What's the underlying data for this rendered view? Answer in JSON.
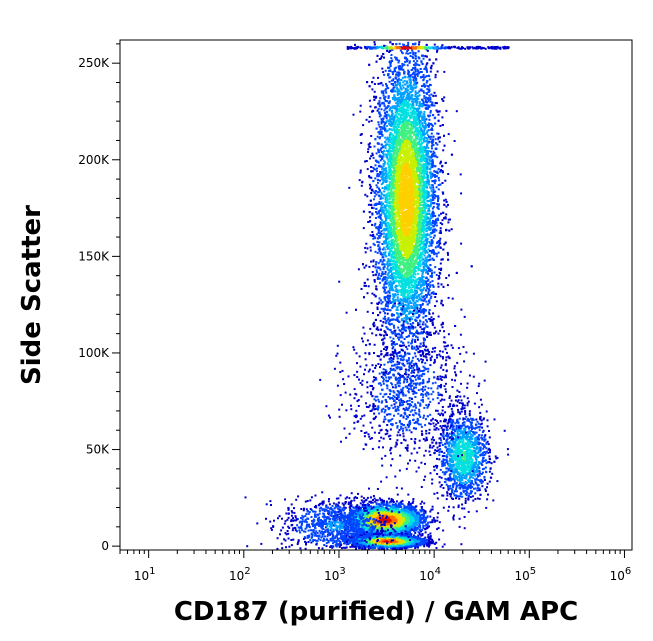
{
  "chart_data": {
    "type": "scatter",
    "subtype": "flow-cytometry-density-plot",
    "xlabel": "CD187 (purified) / GAM APC",
    "ylabel": "Side Scatter",
    "x_scale": "log",
    "xlim": [
      5,
      1200000
    ],
    "ylim": [
      -2000,
      262000
    ],
    "x_ticks": [
      {
        "value": 10,
        "base": "10",
        "exp": "1"
      },
      {
        "value": 100,
        "base": "10",
        "exp": "2"
      },
      {
        "value": 1000,
        "base": "10",
        "exp": "3"
      },
      {
        "value": 10000,
        "base": "10",
        "exp": "4"
      },
      {
        "value": 100000,
        "base": "10",
        "exp": "5"
      },
      {
        "value": 1000000,
        "base": "10",
        "exp": "6"
      }
    ],
    "y_ticks": [
      {
        "value": 0,
        "label": "0"
      },
      {
        "value": 50000,
        "label": "50K"
      },
      {
        "value": 100000,
        "label": "100K"
      },
      {
        "value": 150000,
        "label": "150K"
      },
      {
        "value": 200000,
        "label": "200K"
      },
      {
        "value": 250000,
        "label": "250K"
      }
    ],
    "grid": false,
    "legend": false,
    "colormap": [
      "#0000cc",
      "#0044ff",
      "#00a0ff",
      "#00e0e0",
      "#40f080",
      "#c8f000",
      "#ffd000",
      "#ff7000",
      "#e00000"
    ],
    "populations": [
      {
        "x_center": 5000,
        "x_log_spread": 0.16,
        "y_center": 180000,
        "y_spread": 38000,
        "count": 9000,
        "peak_density": 0.78
      },
      {
        "x_center": 3000,
        "x_log_spread": 0.2,
        "y_center": 14000,
        "y_spread": 4000,
        "count": 3000,
        "peak_density": 1.0
      },
      {
        "x_center": 3200,
        "x_log_spread": 0.18,
        "y_center": 3000,
        "y_spread": 1600,
        "count": 2600,
        "peak_density": 1.0
      },
      {
        "x_center": 20000,
        "x_log_spread": 0.13,
        "y_center": 47000,
        "y_spread": 11000,
        "count": 1400,
        "peak_density": 0.45
      },
      {
        "x_center": 5000,
        "x_log_spread": 0.3,
        "y_center": 80000,
        "y_spread": 18000,
        "count": 900,
        "peak_density": 0.12
      },
      {
        "x_center": 900,
        "x_log_spread": 0.28,
        "y_center": 11000,
        "y_spread": 7000,
        "count": 900,
        "peak_density": 0.2
      }
    ],
    "saturated_band": {
      "x_from": 1200,
      "x_to": 60000,
      "y": 259000,
      "peak_x": 5000
    }
  }
}
